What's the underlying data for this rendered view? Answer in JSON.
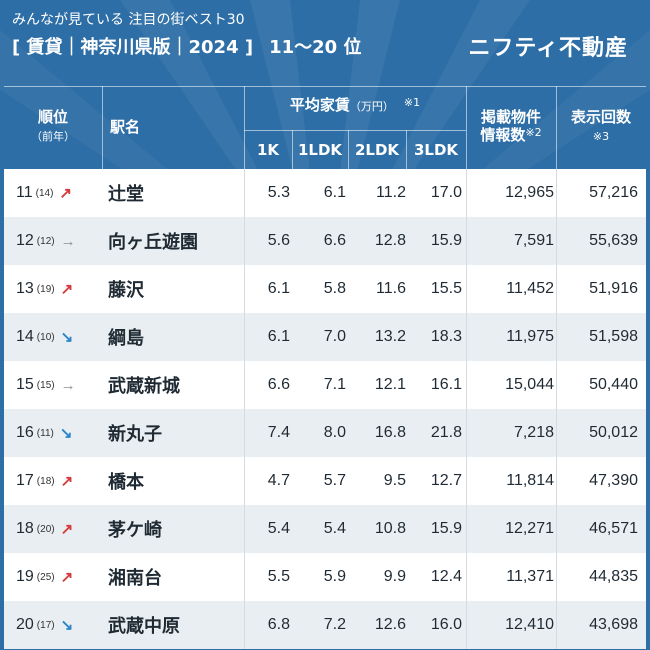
{
  "header": {
    "subtitle": "みんなが見ている 注目の街ベスト30",
    "title": "[ 賃貸｜神奈川県版｜2024 ]",
    "range": "11〜20 位",
    "brand": "ニフティ不動産"
  },
  "table_header": {
    "rank_label": "順位",
    "prev_label": "（前年）",
    "station_label": "駅名",
    "rent_label": "平均家賃",
    "rent_unit": "（万円）",
    "rent_note": "※1",
    "col_1k": "1K",
    "col_1ldk": "1LDK",
    "col_2ldk": "2LDK",
    "col_3ldk": "3LDK",
    "listings_label_1": "掲載物件",
    "listings_label_2": "情報数",
    "listings_note": "※2",
    "views_label": "表示回数",
    "views_note": "※3"
  },
  "arrows": {
    "up": "↗",
    "flat": "→",
    "down": "↘"
  },
  "colors": {
    "background": "#2d6ea6",
    "up": "#d63b3b",
    "flat": "#8a8f94",
    "down": "#2b86c7",
    "row_alt": "#e9eef2"
  },
  "rows": [
    {
      "rank": "11",
      "prev": "(14)",
      "trend": "up",
      "station": "辻堂",
      "k1": "5.3",
      "ldk1": "6.1",
      "ldk2": "11.2",
      "ldk3": "17.0",
      "listings": "12,965",
      "views": "57,216"
    },
    {
      "rank": "12",
      "prev": "(12)",
      "trend": "flat",
      "station": "向ヶ丘遊園",
      "k1": "5.6",
      "ldk1": "6.6",
      "ldk2": "12.8",
      "ldk3": "15.9",
      "listings": "7,591",
      "views": "55,639"
    },
    {
      "rank": "13",
      "prev": "(19)",
      "trend": "up",
      "station": "藤沢",
      "k1": "6.1",
      "ldk1": "5.8",
      "ldk2": "11.6",
      "ldk3": "15.5",
      "listings": "11,452",
      "views": "51,916"
    },
    {
      "rank": "14",
      "prev": "(10)",
      "trend": "down",
      "station": "綱島",
      "k1": "6.1",
      "ldk1": "7.0",
      "ldk2": "13.2",
      "ldk3": "18.3",
      "listings": "11,975",
      "views": "51,598"
    },
    {
      "rank": "15",
      "prev": "(15)",
      "trend": "flat",
      "station": "武蔵新城",
      "k1": "6.6",
      "ldk1": "7.1",
      "ldk2": "12.1",
      "ldk3": "16.1",
      "listings": "15,044",
      "views": "50,440"
    },
    {
      "rank": "16",
      "prev": "(11)",
      "trend": "down",
      "station": "新丸子",
      "k1": "7.4",
      "ldk1": "8.0",
      "ldk2": "16.8",
      "ldk3": "21.8",
      "listings": "7,218",
      "views": "50,012"
    },
    {
      "rank": "17",
      "prev": "(18)",
      "trend": "up",
      "station": "橋本",
      "k1": "4.7",
      "ldk1": "5.7",
      "ldk2": "9.5",
      "ldk3": "12.7",
      "listings": "11,814",
      "views": "47,390"
    },
    {
      "rank": "18",
      "prev": "(20)",
      "trend": "up",
      "station": "茅ケ崎",
      "k1": "5.4",
      "ldk1": "5.4",
      "ldk2": "10.8",
      "ldk3": "15.9",
      "listings": "12,271",
      "views": "46,571"
    },
    {
      "rank": "19",
      "prev": "(25)",
      "trend": "up",
      "station": "湘南台",
      "k1": "5.5",
      "ldk1": "5.9",
      "ldk2": "9.9",
      "ldk3": "12.4",
      "listings": "11,371",
      "views": "44,835"
    },
    {
      "rank": "20",
      "prev": "(17)",
      "trend": "down",
      "station": "武蔵中原",
      "k1": "6.8",
      "ldk1": "7.2",
      "ldk2": "12.6",
      "ldk3": "16.0",
      "listings": "12,410",
      "views": "43,698"
    }
  ]
}
